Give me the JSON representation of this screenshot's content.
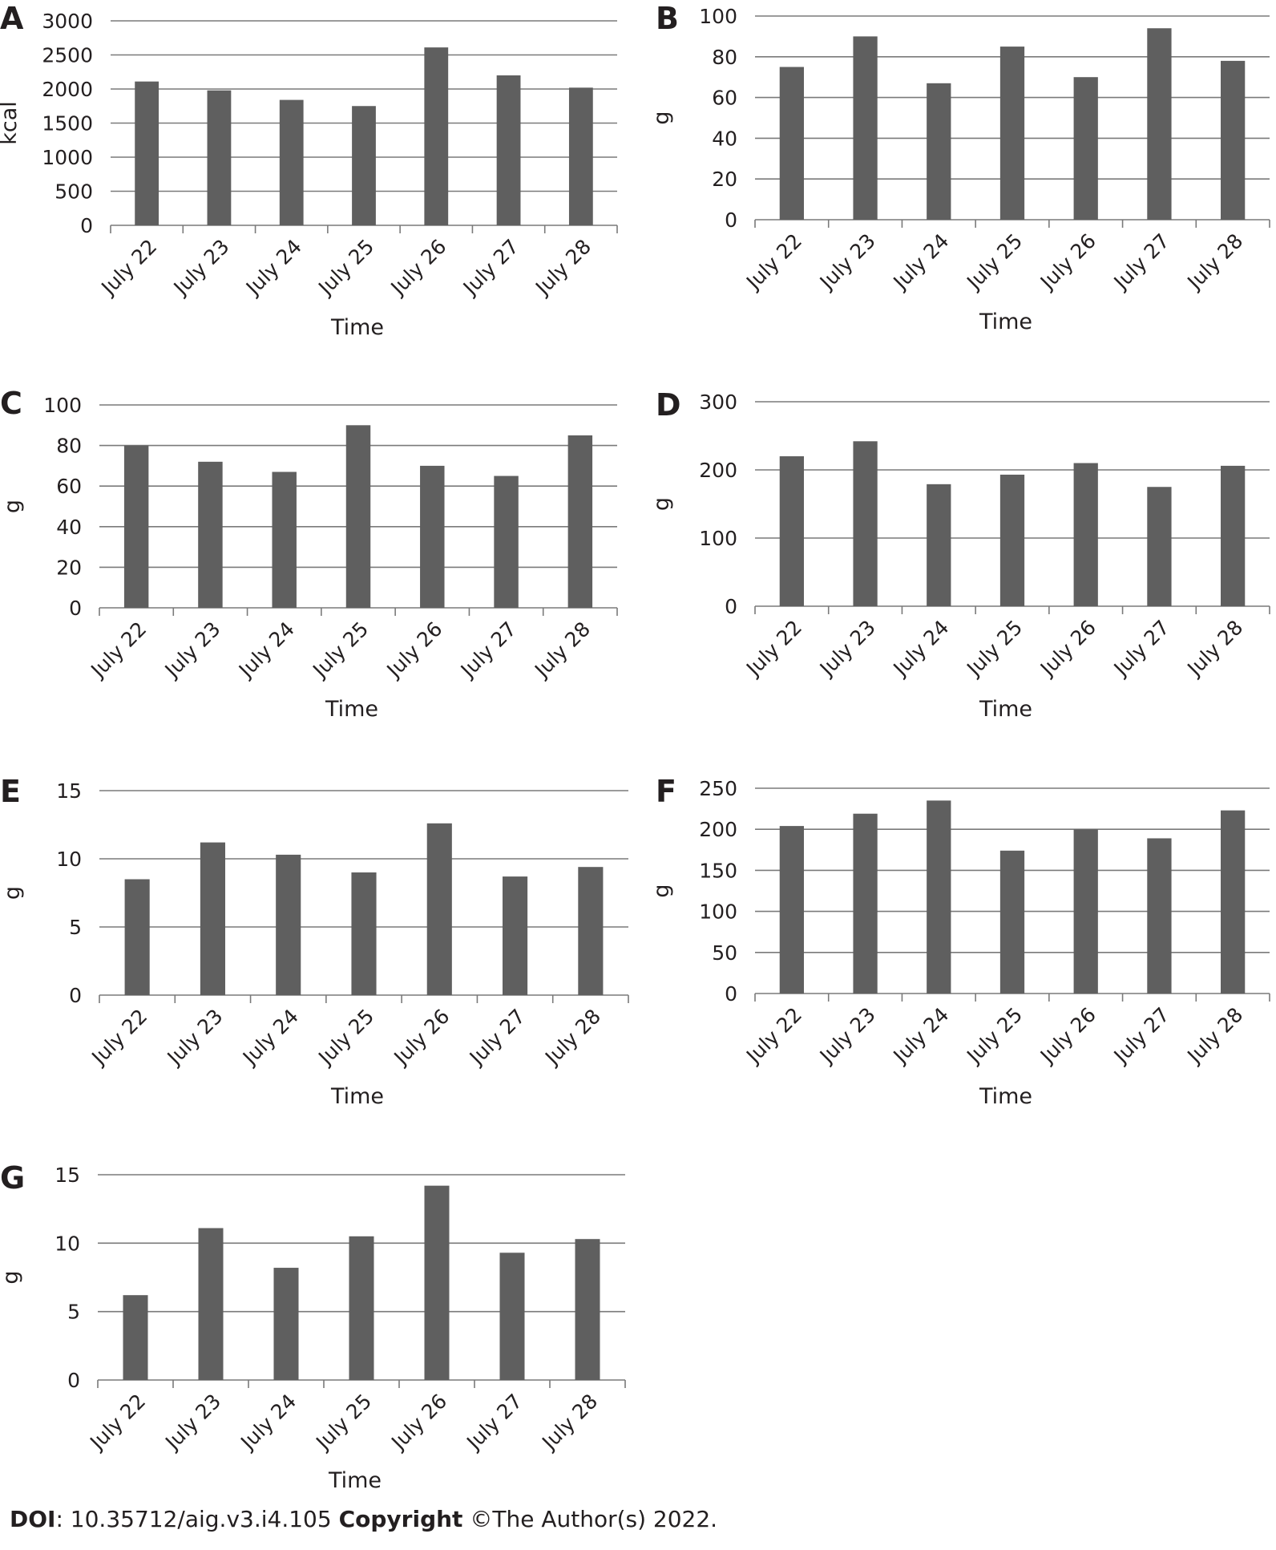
{
  "chart_data": [
    {
      "panel": "A",
      "type": "bar",
      "categories": [
        "July 22",
        "July 23",
        "July 24",
        "July 25",
        "July 26",
        "July 27",
        "July 28"
      ],
      "values": [
        2110,
        1980,
        1840,
        1750,
        2610,
        2200,
        2020
      ],
      "xlabel": "Time",
      "ylabel": "kcal",
      "ylim": [
        0,
        3000
      ],
      "yticks": [
        "0",
        "500",
        "1000",
        "1500",
        "2000",
        "2500",
        "3000"
      ],
      "grid": true
    },
    {
      "panel": "B",
      "type": "bar",
      "categories": [
        "July 22",
        "July 23",
        "July 24",
        "July 25",
        "July 26",
        "July 27",
        "July 28"
      ],
      "values": [
        75,
        90,
        67,
        85,
        70,
        94,
        78
      ],
      "xlabel": "Time",
      "ylabel": "g",
      "ylim": [
        0,
        100
      ],
      "yticks": [
        "0",
        "20",
        "40",
        "60",
        "80",
        "100"
      ],
      "grid": true
    },
    {
      "panel": "C",
      "type": "bar",
      "categories": [
        "July 22",
        "July 23",
        "July 24",
        "July 25",
        "July 26",
        "July 27",
        "July 28"
      ],
      "values": [
        80,
        72,
        67,
        90,
        70,
        65,
        85
      ],
      "xlabel": "Time",
      "ylabel": "g",
      "ylim": [
        0,
        100
      ],
      "yticks": [
        "0",
        "20",
        "40",
        "60",
        "80",
        "100"
      ],
      "grid": true
    },
    {
      "panel": "D",
      "type": "bar",
      "categories": [
        "July 22",
        "July 23",
        "July 24",
        "July 25",
        "July 26",
        "July 27",
        "July 28"
      ],
      "values": [
        220,
        242,
        179,
        193,
        210,
        175,
        206
      ],
      "xlabel": "Time",
      "ylabel": "g",
      "ylim": [
        0,
        300
      ],
      "yticks": [
        "0",
        "100",
        "200",
        "300"
      ],
      "grid": true
    },
    {
      "panel": "E",
      "type": "bar",
      "categories": [
        "July 22",
        "July 23",
        "July 24",
        "July 25",
        "July 26",
        "July 27",
        "July 28"
      ],
      "values": [
        8.5,
        11.2,
        10.3,
        9.0,
        12.6,
        8.7,
        9.4
      ],
      "xlabel": "Time",
      "ylabel": "g",
      "ylim": [
        0,
        15
      ],
      "yticks": [
        "0",
        "5",
        "10",
        "15"
      ],
      "grid": true
    },
    {
      "panel": "F",
      "type": "bar",
      "categories": [
        "July 22",
        "July 23",
        "July 24",
        "July 25",
        "July 26",
        "July 27",
        "July 28"
      ],
      "values": [
        204,
        219,
        235,
        174,
        200,
        189,
        223
      ],
      "xlabel": "Time",
      "ylabel": "g",
      "ylim": [
        0,
        250
      ],
      "yticks": [
        "0",
        "50",
        "100",
        "150",
        "200",
        "250"
      ],
      "grid": true
    },
    {
      "panel": "G",
      "type": "bar",
      "categories": [
        "July 22",
        "July 23",
        "July 24",
        "July 25",
        "July 26",
        "July 27",
        "July 28"
      ],
      "values": [
        6.2,
        11.1,
        8.2,
        10.5,
        14.2,
        9.3,
        10.3
      ],
      "xlabel": "Time",
      "ylabel": "g",
      "ylim": [
        0,
        15
      ],
      "yticks": [
        "0",
        "5",
        "10",
        "15"
      ],
      "grid": true
    }
  ],
  "colors": {
    "bar": "#5f5f5f",
    "grid": "#7a7a7a",
    "text": "#231f20"
  },
  "footer": {
    "doi_label": "DOI",
    "doi_value": ": 10.35712/aig.v3.i4.105 ",
    "copyright_label": "Copyright",
    "copyright_value": " ©The Author(s) 2022."
  }
}
